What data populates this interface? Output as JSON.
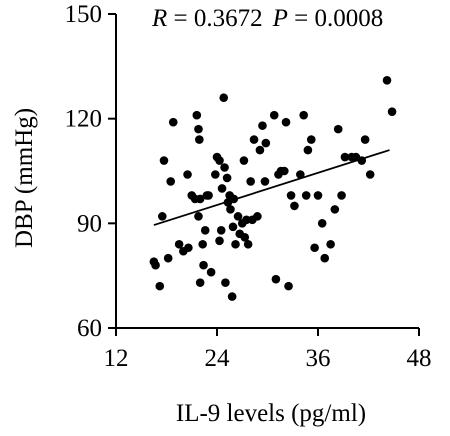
{
  "chart_data": {
    "type": "scatter",
    "title": "",
    "annotation": {
      "r_symbol": "R",
      "r_value": " = 0.3672",
      "p_symbol": "P",
      "p_value": " = 0.0008"
    },
    "xlabel": "IL-9 levels (pg/ml)",
    "ylabel": "DBP (mmHg)",
    "xlim": [
      12,
      48
    ],
    "ylim": [
      60,
      150
    ],
    "xticks": [
      12,
      24,
      36,
      48
    ],
    "yticks": [
      60,
      90,
      120,
      150
    ],
    "grid": false,
    "legend": "none",
    "marker_color": "#000000",
    "trendline": {
      "x": [
        16.5,
        44.5
      ],
      "y": [
        89.5,
        111
      ]
    },
    "points": [
      {
        "x": 16.5,
        "y": 79
      },
      {
        "x": 16.7,
        "y": 78
      },
      {
        "x": 17.2,
        "y": 72
      },
      {
        "x": 17.5,
        "y": 92
      },
      {
        "x": 17.7,
        "y": 108
      },
      {
        "x": 18.2,
        "y": 80
      },
      {
        "x": 18.5,
        "y": 102
      },
      {
        "x": 18.8,
        "y": 119
      },
      {
        "x": 19.5,
        "y": 84
      },
      {
        "x": 20,
        "y": 82
      },
      {
        "x": 20.5,
        "y": 104
      },
      {
        "x": 20.6,
        "y": 83
      },
      {
        "x": 21,
        "y": 98
      },
      {
        "x": 21.4,
        "y": 97
      },
      {
        "x": 21.6,
        "y": 121
      },
      {
        "x": 21.8,
        "y": 117
      },
      {
        "x": 21.9,
        "y": 114
      },
      {
        "x": 21.8,
        "y": 92
      },
      {
        "x": 22,
        "y": 97
      },
      {
        "x": 22,
        "y": 73
      },
      {
        "x": 22.3,
        "y": 84
      },
      {
        "x": 22.4,
        "y": 78
      },
      {
        "x": 22.6,
        "y": 88
      },
      {
        "x": 22.8,
        "y": 98
      },
      {
        "x": 23,
        "y": 98
      },
      {
        "x": 23.3,
        "y": 76
      },
      {
        "x": 23.8,
        "y": 104
      },
      {
        "x": 24,
        "y": 109
      },
      {
        "x": 24.3,
        "y": 85
      },
      {
        "x": 24.3,
        "y": 108
      },
      {
        "x": 24.5,
        "y": 88
      },
      {
        "x": 24.6,
        "y": 100
      },
      {
        "x": 24.8,
        "y": 126
      },
      {
        "x": 24.9,
        "y": 106
      },
      {
        "x": 25,
        "y": 73
      },
      {
        "x": 25.2,
        "y": 103
      },
      {
        "x": 25.3,
        "y": 96
      },
      {
        "x": 25.5,
        "y": 98
      },
      {
        "x": 25.6,
        "y": 94
      },
      {
        "x": 25.8,
        "y": 69
      },
      {
        "x": 25.9,
        "y": 89
      },
      {
        "x": 26,
        "y": 97
      },
      {
        "x": 26.2,
        "y": 84
      },
      {
        "x": 26.5,
        "y": 92
      },
      {
        "x": 26.7,
        "y": 87
      },
      {
        "x": 27,
        "y": 90
      },
      {
        "x": 27.2,
        "y": 108
      },
      {
        "x": 27.3,
        "y": 86
      },
      {
        "x": 27.5,
        "y": 91
      },
      {
        "x": 27.7,
        "y": 84
      },
      {
        "x": 28,
        "y": 102
      },
      {
        "x": 28.2,
        "y": 91
      },
      {
        "x": 28.4,
        "y": 114
      },
      {
        "x": 28.8,
        "y": 92
      },
      {
        "x": 29.1,
        "y": 111
      },
      {
        "x": 29.4,
        "y": 118
      },
      {
        "x": 29.7,
        "y": 102
      },
      {
        "x": 29.8,
        "y": 113
      },
      {
        "x": 30.8,
        "y": 121
      },
      {
        "x": 31,
        "y": 74
      },
      {
        "x": 31.3,
        "y": 104
      },
      {
        "x": 31.6,
        "y": 105
      },
      {
        "x": 32,
        "y": 105
      },
      {
        "x": 32.2,
        "y": 119
      },
      {
        "x": 32.5,
        "y": 72
      },
      {
        "x": 32.8,
        "y": 98
      },
      {
        "x": 33.2,
        "y": 95
      },
      {
        "x": 33.9,
        "y": 104
      },
      {
        "x": 34.3,
        "y": 121
      },
      {
        "x": 34.6,
        "y": 98
      },
      {
        "x": 34.8,
        "y": 111
      },
      {
        "x": 35.2,
        "y": 114
      },
      {
        "x": 35.6,
        "y": 83
      },
      {
        "x": 36,
        "y": 98
      },
      {
        "x": 36.5,
        "y": 90
      },
      {
        "x": 36.8,
        "y": 80
      },
      {
        "x": 37.5,
        "y": 84
      },
      {
        "x": 38,
        "y": 94
      },
      {
        "x": 38.4,
        "y": 117
      },
      {
        "x": 38.8,
        "y": 98
      },
      {
        "x": 39.2,
        "y": 109
      },
      {
        "x": 40,
        "y": 109
      },
      {
        "x": 40.5,
        "y": 109
      },
      {
        "x": 41.2,
        "y": 108
      },
      {
        "x": 41.6,
        "y": 114
      },
      {
        "x": 42.2,
        "y": 104
      },
      {
        "x": 44.2,
        "y": 131
      },
      {
        "x": 44.8,
        "y": 122
      }
    ]
  }
}
